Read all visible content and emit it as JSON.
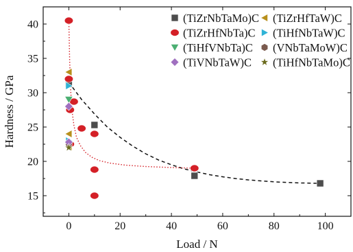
{
  "chart_data": {
    "type": "scatter",
    "xlabel": "Load / N",
    "ylabel": "Hardness / GPa",
    "xlim": [
      -10,
      110
    ],
    "ylim": [
      12,
      42.5
    ],
    "xticks": [
      0,
      20,
      40,
      60,
      80,
      100
    ],
    "yticks": [
      15,
      20,
      25,
      30,
      35,
      40
    ],
    "legend_position": "top-right",
    "series": [
      {
        "name": "(TiZrNbTaMo)C",
        "marker": "square",
        "color": "#4d4d4d",
        "points": [
          [
            0,
            31.3
          ],
          [
            10,
            25.3
          ],
          [
            49,
            17.9
          ],
          [
            98,
            16.8
          ]
        ]
      },
      {
        "name": "(TiZrHfTaW)C",
        "marker": "triangle-left",
        "color": "#b8901c",
        "points": [
          [
            0,
            33.0
          ],
          [
            0,
            24.0
          ],
          [
            0,
            22.1
          ]
        ]
      },
      {
        "name": "(TiZrHfNbTa)C",
        "marker": "circle",
        "color": "#d42027",
        "points": [
          [
            0,
            40.5
          ],
          [
            0,
            32.0
          ],
          [
            0.5,
            27.5
          ],
          [
            2,
            28.7
          ],
          [
            5,
            24.8
          ],
          [
            0.5,
            22.5
          ],
          [
            10,
            24.0
          ],
          [
            10,
            18.8
          ],
          [
            10,
            15.0
          ],
          [
            49,
            19.0
          ]
        ]
      },
      {
        "name": "(TiHfNbTaW)C",
        "marker": "triangle-right",
        "color": "#2fb3d6",
        "points": [
          [
            0,
            31.0
          ],
          [
            0,
            23.0
          ]
        ]
      },
      {
        "name": "(TiHfVNbTa)C",
        "marker": "triangle-down",
        "color": "#4caf72",
        "points": [
          [
            0,
            29.0
          ]
        ]
      },
      {
        "name": "(VNbTaMoW)C",
        "marker": "hexagon",
        "color": "#7a5a4e",
        "points": [
          [
            0,
            22.6
          ]
        ]
      },
      {
        "name": "(TiVNbTaW)C",
        "marker": "diamond",
        "color": "#a070c0",
        "points": [
          [
            0,
            28.0
          ],
          [
            0,
            22.8
          ]
        ]
      },
      {
        "name": "(TiHfNbTaMo)C",
        "marker": "star",
        "color": "#6b6b1e",
        "points": [
          [
            0,
            22.0
          ]
        ]
      }
    ],
    "fit_curves": [
      {
        "style": "dashed",
        "color": "#111111",
        "points": [
          [
            0,
            31.5
          ],
          [
            5,
            29.0
          ],
          [
            10,
            26.9
          ],
          [
            15,
            25.0
          ],
          [
            20,
            23.5
          ],
          [
            25,
            22.2
          ],
          [
            30,
            21.1
          ],
          [
            35,
            20.2
          ],
          [
            40,
            19.5
          ],
          [
            45,
            18.9
          ],
          [
            50,
            18.45
          ],
          [
            55,
            18.05
          ],
          [
            60,
            17.75
          ],
          [
            65,
            17.5
          ],
          [
            70,
            17.3
          ],
          [
            75,
            17.15
          ],
          [
            80,
            17.02
          ],
          [
            85,
            16.93
          ],
          [
            90,
            16.86
          ],
          [
            95,
            16.82
          ],
          [
            98,
            16.8
          ]
        ]
      },
      {
        "style": "dotted",
        "color": "#d42027",
        "points": [
          [
            0,
            40.5
          ],
          [
            0.3,
            35.0
          ],
          [
            0.7,
            30.5
          ],
          [
            1.2,
            27.5
          ],
          [
            2,
            25.2
          ],
          [
            3,
            23.5
          ],
          [
            4.5,
            22.3
          ],
          [
            6.5,
            21.3
          ],
          [
            9,
            20.6
          ],
          [
            12,
            20.1
          ],
          [
            16,
            19.75
          ],
          [
            22,
            19.45
          ],
          [
            30,
            19.25
          ],
          [
            40,
            19.1
          ],
          [
            49,
            19.0
          ]
        ]
      }
    ]
  }
}
